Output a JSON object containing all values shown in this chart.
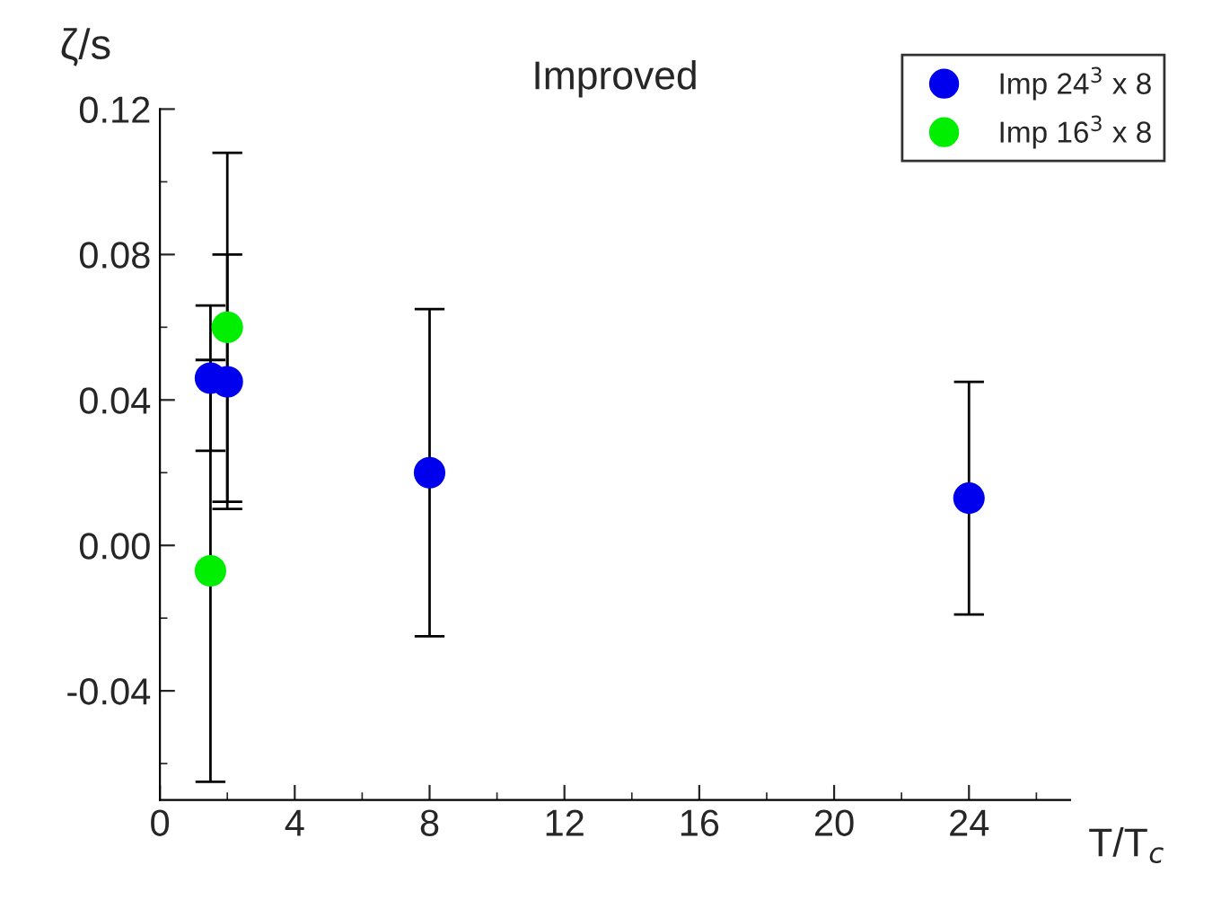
{
  "chart_data": {
    "type": "scatter",
    "title": "Improved",
    "xlabel": "T/T$_{c}$",
    "ylabel": "ζ/s",
    "xlim": [
      0,
      27
    ],
    "xticks": [
      0,
      4,
      8,
      12,
      16,
      20,
      24
    ],
    "ylim": [
      -0.07,
      0.12
    ],
    "yticks": [
      {
        "value": -0.04,
        "label": "-0.04"
      },
      {
        "value": 0.0,
        "label": "0.00"
      },
      {
        "value": 0.04,
        "label": "0.04"
      },
      {
        "value": 0.08,
        "label": "0.08"
      },
      {
        "value": 0.12,
        "label": "0.12"
      }
    ],
    "marker": "circle",
    "legend": "top right",
    "grid": false,
    "series": [
      {
        "name": "Imp 24$^{3}$ x 8",
        "color": "#0000ee",
        "x": [
          1.5,
          2.0,
          8.0,
          24.0
        ],
        "values": [
          0.046,
          0.045,
          0.02,
          0.013
        ],
        "errors": [
          0.02,
          0.035,
          0.045,
          0.032
        ]
      },
      {
        "name": "Imp 16$^{3}$ x 8",
        "color": "#00ee00",
        "x": [
          1.5,
          2.0
        ],
        "values": [
          -0.007,
          0.06
        ],
        "errors": [
          0.058,
          0.048
        ]
      }
    ]
  }
}
